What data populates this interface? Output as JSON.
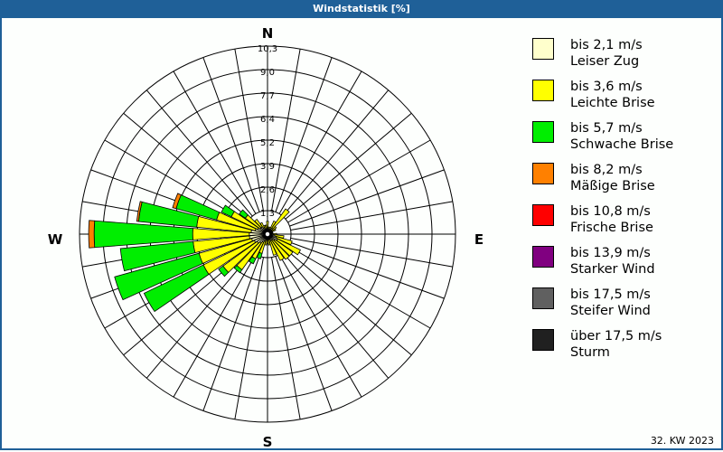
{
  "title": "Windstatistik [%]",
  "footer": "32. KW 2023",
  "compass": {
    "N": "N",
    "E": "E",
    "S": "S",
    "W": "W"
  },
  "legend": [
    {
      "range": "bis 2,1 m/s",
      "name": "Leiser Zug",
      "color": "#ffffcc"
    },
    {
      "range": "bis 3,6 m/s",
      "name": "Leichte Brise",
      "color": "#ffff00"
    },
    {
      "range": "bis 5,7 m/s",
      "name": "Schwache Brise",
      "color": "#00ee00"
    },
    {
      "range": "bis 8,2 m/s",
      "name": "Mäßige Brise",
      "color": "#ff8000"
    },
    {
      "range": "bis 10,8 m/s",
      "name": "Frische Brise",
      "color": "#ff0000"
    },
    {
      "range": "bis 13,9 m/s",
      "name": "Starker Wind",
      "color": "#800080"
    },
    {
      "range": "bis 17,5 m/s",
      "name": "Steifer Wind",
      "color": "#606060"
    },
    {
      "range": "über 17,5 m/s",
      "name": "Sturm",
      "color": "#202020"
    }
  ],
  "chart_data": {
    "type": "polar-stacked-bar (wind rose)",
    "title": "Windstatistik [%]",
    "unit": "%",
    "radial_ticks": [
      1.3,
      2.6,
      3.9,
      5.2,
      6.4,
      7.7,
      9.0,
      10.3
    ],
    "rmax": 10.3,
    "sector_width_deg": 10,
    "directions_deg": [
      0,
      10,
      20,
      30,
      40,
      50,
      60,
      70,
      80,
      90,
      100,
      110,
      120,
      130,
      140,
      150,
      160,
      170,
      180,
      190,
      200,
      210,
      220,
      230,
      240,
      250,
      260,
      270,
      280,
      290,
      300,
      310,
      320,
      330,
      340,
      350
    ],
    "series": [
      {
        "name": "bis 2,1 m/s",
        "values": [
          0.3,
          0.2,
          0.2,
          0.3,
          0.4,
          0.3,
          0.3,
          0.2,
          0.2,
          0.3,
          0.4,
          0.5,
          0.6,
          0.5,
          0.4,
          0.4,
          0.3,
          0.3,
          0.3,
          0.3,
          0.4,
          0.5,
          0.6,
          0.7,
          0.8,
          0.9,
          1.0,
          1.0,
          0.9,
          0.7,
          0.6,
          0.5,
          0.5,
          0.4,
          0.3,
          0.3
        ]
      },
      {
        "name": "bis 3,6 m/s",
        "values": [
          0.4,
          0.2,
          0.2,
          0.5,
          1.3,
          0.3,
          0.2,
          0.1,
          0.1,
          0.2,
          0.5,
          0.9,
          1.4,
          1.2,
          1.3,
          1.2,
          0.9,
          0.3,
          0.2,
          0.3,
          0.7,
          1.0,
          1.8,
          2.3,
          3.1,
          3.0,
          3.1,
          3.1,
          3.0,
          2.2,
          1.6,
          1.0,
          0.5,
          0.3,
          0.2,
          0.2
        ]
      },
      {
        "name": "bis 5,7 m/s",
        "values": [
          0,
          0,
          0,
          0,
          0,
          0,
          0,
          0,
          0,
          0,
          0,
          0,
          0,
          0,
          0,
          0,
          0,
          0,
          0,
          0,
          0.3,
          0.3,
          0.2,
          0.3,
          3.6,
          4.8,
          4.0,
          5.4,
          3.2,
          2.3,
          0.6,
          0.4,
          0,
          0,
          0,
          0
        ]
      },
      {
        "name": "bis 8,2 m/s",
        "values": [
          0,
          0,
          0,
          0,
          0,
          0,
          0,
          0,
          0,
          0,
          0,
          0,
          0,
          0,
          0,
          0,
          0,
          0,
          0,
          0,
          0,
          0,
          0,
          0,
          0,
          0,
          0,
          0.3,
          0.1,
          0.2,
          0,
          0,
          0,
          0,
          0,
          0
        ]
      },
      {
        "name": "bis 10,8 m/s",
        "values": [
          0,
          0,
          0,
          0,
          0,
          0,
          0,
          0,
          0,
          0,
          0,
          0,
          0,
          0,
          0,
          0,
          0,
          0,
          0,
          0,
          0,
          0,
          0,
          0,
          0,
          0,
          0,
          0,
          0,
          0,
          0,
          0,
          0,
          0,
          0,
          0
        ]
      },
      {
        "name": "bis 13,9 m/s",
        "values": [
          0,
          0,
          0,
          0,
          0,
          0,
          0,
          0,
          0,
          0,
          0,
          0,
          0,
          0,
          0,
          0,
          0,
          0,
          0,
          0,
          0,
          0,
          0,
          0,
          0,
          0,
          0,
          0,
          0,
          0,
          0,
          0,
          0,
          0,
          0,
          0
        ]
      },
      {
        "name": "bis 17,5 m/s",
        "values": [
          0,
          0,
          0,
          0,
          0,
          0,
          0,
          0,
          0,
          0,
          0,
          0,
          0,
          0,
          0,
          0,
          0,
          0,
          0,
          0,
          0,
          0,
          0,
          0,
          0,
          0,
          0,
          0,
          0,
          0,
          0,
          0,
          0,
          0,
          0,
          0
        ]
      },
      {
        "name": "über 17,5 m/s",
        "values": [
          0,
          0,
          0,
          0,
          0,
          0,
          0,
          0,
          0,
          0,
          0,
          0,
          0,
          0,
          0,
          0,
          0,
          0,
          0,
          0,
          0,
          0,
          0,
          0,
          0,
          0,
          0,
          0,
          0,
          0,
          0,
          0,
          0,
          0,
          0,
          0
        ]
      }
    ],
    "legend_position": "right",
    "grid": true
  }
}
